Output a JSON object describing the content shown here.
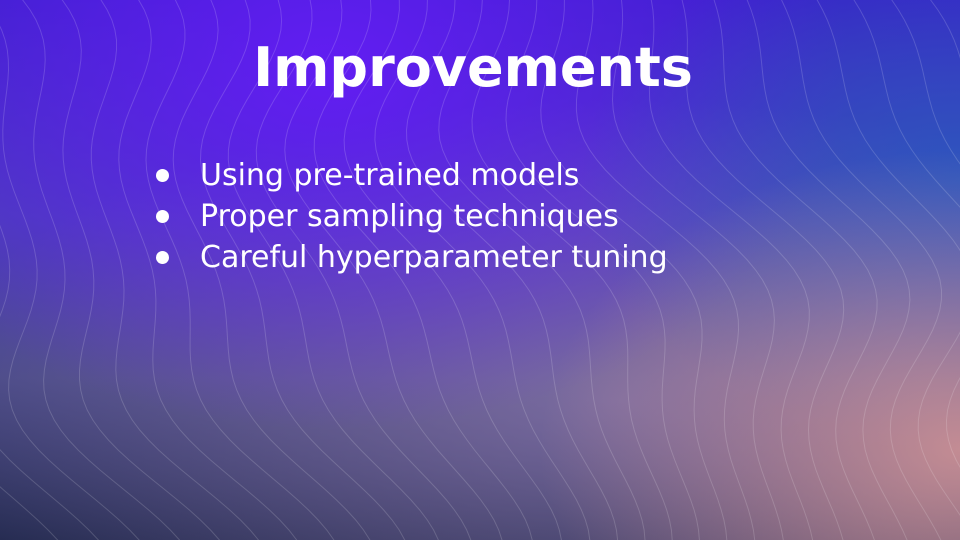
{
  "slide": {
    "title": "Improvements",
    "bullets": [
      "Using pre-trained models",
      "Proper sampling techniques",
      "Careful hyperparameter tuning"
    ]
  },
  "theme": {
    "text_color": "#ffffff",
    "accent_purple": "#641cf5",
    "accent_blue": "#285abe",
    "accent_pink": "#d69696",
    "base_dark": "#262c52"
  },
  "icons": {
    "bullet": "bullet-dot-icon"
  }
}
